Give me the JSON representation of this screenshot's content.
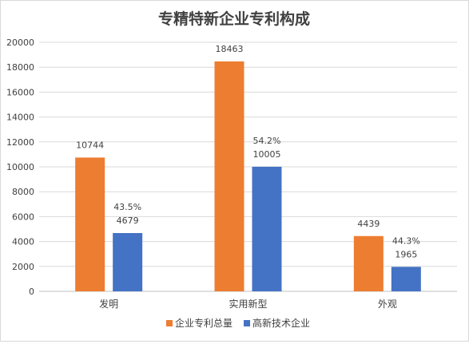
{
  "chart_data": {
    "type": "bar",
    "title": "专精特新企业专利构成",
    "categories": [
      "发明",
      "实用新型",
      "外观"
    ],
    "series": [
      {
        "name": "企业专利总量",
        "color": "#ED7D31",
        "values": [
          10744,
          18463,
          4439
        ]
      },
      {
        "name": "高新技术企业",
        "color": "#4472C4",
        "values": [
          4679,
          10005,
          1965
        ],
        "percent_labels": [
          "43.5%",
          "54.2%",
          "44.3%"
        ]
      }
    ],
    "ylim": [
      0,
      20000
    ],
    "yticks": [
      0,
      2000,
      4000,
      6000,
      8000,
      10000,
      12000,
      14000,
      16000,
      18000,
      20000
    ],
    "grid": true,
    "legend_position": "bottom"
  }
}
